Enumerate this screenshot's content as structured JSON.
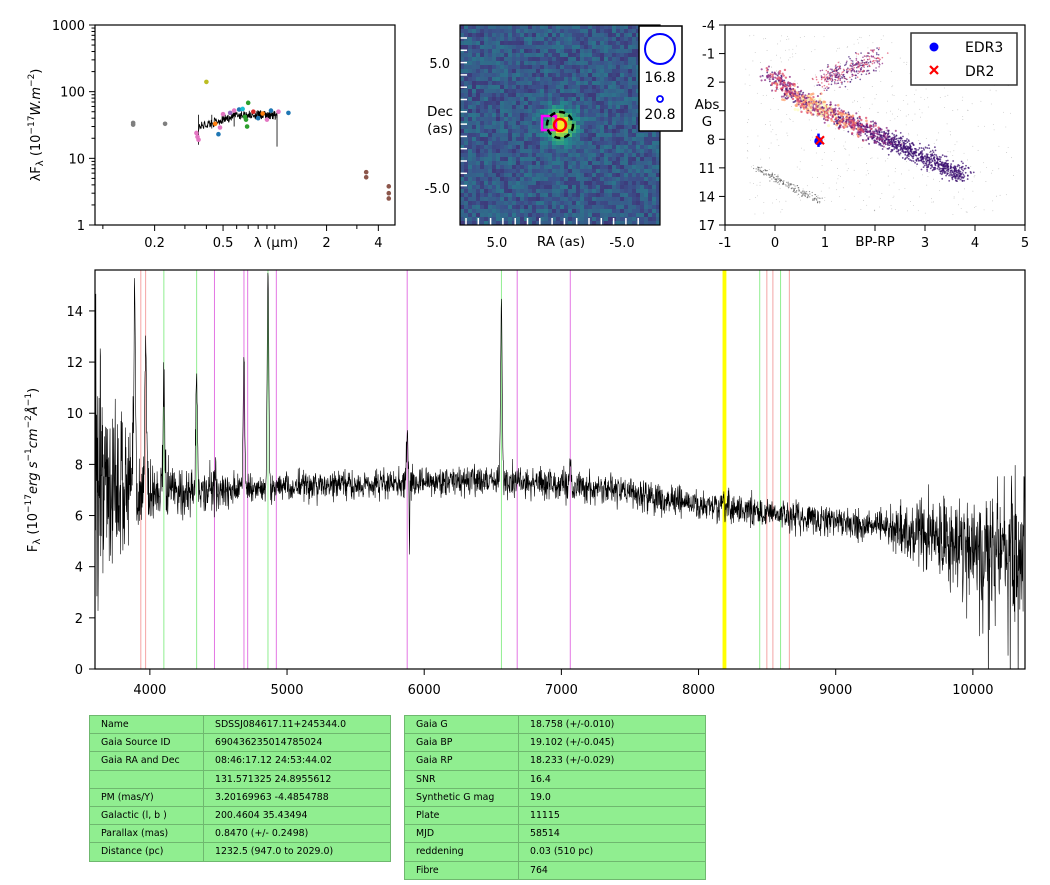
{
  "sed_panel": {
    "chart_data": {
      "type": "scatter",
      "xscale": "log",
      "yscale": "log",
      "xlim": [
        0.09,
        5.0
      ],
      "ylim": [
        1,
        1000
      ],
      "xlabel": "λ (μm)",
      "ylabel": "λF_λ (10^-17 W.m^-2)",
      "x_ticks": [
        "0.2",
        "0.5",
        "2",
        "4"
      ],
      "y_ticks": [
        "1",
        "10",
        "100",
        "1000"
      ],
      "points": [
        {
          "x": 0.15,
          "y": 34,
          "color": "#7f7f7f"
        },
        {
          "x": 0.15,
          "y": 32,
          "color": "#7f7f7f"
        },
        {
          "x": 0.23,
          "y": 33,
          "color": "#7f7f7f"
        },
        {
          "x": 0.35,
          "y": 24,
          "color": "#e377c2"
        },
        {
          "x": 0.355,
          "y": 21,
          "color": "#e377c2"
        },
        {
          "x": 0.36,
          "y": 19,
          "color": "#e377c2"
        },
        {
          "x": 0.4,
          "y": 140,
          "color": "#bcbd22"
        },
        {
          "x": 0.45,
          "y": 33,
          "color": "#ff7f0e"
        },
        {
          "x": 0.47,
          "y": 23,
          "color": "#1f77b4"
        },
        {
          "x": 0.48,
          "y": 29,
          "color": "#e377c2"
        },
        {
          "x": 0.5,
          "y": 46,
          "color": "#e377c2"
        },
        {
          "x": 0.55,
          "y": 48,
          "color": "#9467bd"
        },
        {
          "x": 0.58,
          "y": 52,
          "color": "#e377c2"
        },
        {
          "x": 0.62,
          "y": 54,
          "color": "#1f77b4"
        },
        {
          "x": 0.65,
          "y": 55,
          "color": "#17becf"
        },
        {
          "x": 0.67,
          "y": 42,
          "color": "#2ca02c"
        },
        {
          "x": 0.68,
          "y": 38,
          "color": "#2ca02c"
        },
        {
          "x": 0.69,
          "y": 30,
          "color": "#2ca02c"
        },
        {
          "x": 0.7,
          "y": 68,
          "color": "#2ca02c"
        },
        {
          "x": 0.75,
          "y": 50,
          "color": "#d62728"
        },
        {
          "x": 0.8,
          "y": 40,
          "color": "#1f77b4"
        },
        {
          "x": 0.85,
          "y": 47,
          "color": "#ff7f0e"
        },
        {
          "x": 0.9,
          "y": 38,
          "color": "#e377c2"
        },
        {
          "x": 0.95,
          "y": 52,
          "color": "#1f77b4"
        },
        {
          "x": 1.05,
          "y": 50,
          "color": "#e377c2"
        },
        {
          "x": 1.2,
          "y": 48,
          "color": "#1f77b4"
        },
        {
          "x": 3.4,
          "y": 6.2,
          "color": "#8c564b"
        },
        {
          "x": 3.4,
          "y": 5.2,
          "color": "#8c564b"
        },
        {
          "x": 4.6,
          "y": 3.8,
          "color": "#8c564b"
        },
        {
          "x": 4.6,
          "y": 3.0,
          "color": "#8c564b"
        },
        {
          "x": 4.6,
          "y": 2.5,
          "color": "#8c564b"
        }
      ]
    }
  },
  "image_panel": {
    "chart_data": {
      "type": "heatmap",
      "xlabel": "RA (as)",
      "ylabel_line1": "Dec",
      "ylabel_line2": "(as)",
      "x_ticks": [
        "5.0",
        "-5.0"
      ],
      "y_ticks": [
        "5.0",
        "-5.0"
      ],
      "legend": [
        {
          "label": "16.8",
          "marker": "large circle",
          "color": "#0000ff"
        },
        {
          "label": "20.8",
          "marker": "small circle",
          "color": "#0000ff"
        }
      ]
    }
  },
  "cmd_panel": {
    "chart_data": {
      "type": "scatter",
      "xlabel": "BP-RP",
      "ylabel_line1": "Abs",
      "ylabel_line2": "G",
      "xlim": [
        -1,
        5
      ],
      "ylim": [
        17,
        -4
      ],
      "x_ticks": [
        "-1",
        "0",
        "1",
        "3",
        "4",
        "5"
      ],
      "y_ticks": [
        "-4",
        "-1",
        "2",
        "8",
        "11",
        "14",
        "17"
      ],
      "legend": [
        {
          "label": "EDR3",
          "marker": "circle",
          "color": "#0000ff"
        },
        {
          "label": "DR2",
          "marker": "x",
          "color": "#ff0000"
        }
      ],
      "series": [
        {
          "name": "EDR3",
          "x": [
            0.87
          ],
          "y": [
            8.2
          ],
          "color": "#0000ff"
        },
        {
          "name": "DR2",
          "x": [
            0.9
          ],
          "y": [
            8.1
          ],
          "color": "#ff0000"
        }
      ]
    }
  },
  "spectrum_panel": {
    "chart_data": {
      "type": "line",
      "xlim": [
        3600,
        10380
      ],
      "ylim": [
        0,
        15.6
      ],
      "ylabel": "F_λ (10^-17 erg s^-1 cm^-2 Å^-1)",
      "x_ticks": [
        "4000",
        "5000",
        "6000",
        "7000",
        "8000",
        "9000",
        "10000"
      ],
      "y_ticks": [
        "0",
        "2",
        "4",
        "6",
        "8",
        "10",
        "12",
        "14"
      ],
      "continuum_knots": [
        [
          3600,
          7.5
        ],
        [
          3900,
          7.0
        ],
        [
          4200,
          6.9
        ],
        [
          4500,
          7.0
        ],
        [
          5000,
          7.1
        ],
        [
          5500,
          7.2
        ],
        [
          6000,
          7.3
        ],
        [
          6500,
          7.4
        ],
        [
          7000,
          7.2
        ],
        [
          7500,
          6.9
        ],
        [
          8000,
          6.4
        ],
        [
          8500,
          6.1
        ],
        [
          9000,
          5.8
        ],
        [
          9500,
          5.4
        ],
        [
          10000,
          4.8
        ],
        [
          10380,
          4.6
        ]
      ],
      "emission_lines": [
        [
          3889,
          14.5
        ],
        [
          3970,
          13.0
        ],
        [
          4102,
          11.0
        ],
        [
          4341,
          11.5
        ],
        [
          4686,
          12.4
        ],
        [
          4861,
          15.6
        ],
        [
          5876,
          9.3
        ],
        [
          6563,
          14.4
        ],
        [
          7065,
          8.3
        ]
      ],
      "vertical_lines": [
        {
          "x": 3934,
          "color": "#f4a5a5"
        },
        {
          "x": 3969,
          "color": "#f4a5a5"
        },
        {
          "x": 4102,
          "color": "#90ee90"
        },
        {
          "x": 4341,
          "color": "#90ee90"
        },
        {
          "x": 4471,
          "color": "#e377e3"
        },
        {
          "x": 4686,
          "color": "#e377e3"
        },
        {
          "x": 4713,
          "color": "#e377e3"
        },
        {
          "x": 4861,
          "color": "#90ee90"
        },
        {
          "x": 4922,
          "color": "#e377e3"
        },
        {
          "x": 5876,
          "color": "#e377e3"
        },
        {
          "x": 6563,
          "color": "#90ee90"
        },
        {
          "x": 6678,
          "color": "#e377e3"
        },
        {
          "x": 7065,
          "color": "#e377e3"
        },
        {
          "x": 8183,
          "color": "#ffff00"
        },
        {
          "x": 8195,
          "color": "#ffff00"
        },
        {
          "x": 8446,
          "color": "#90ee90"
        },
        {
          "x": 8498,
          "color": "#f4a5a5"
        },
        {
          "x": 8542,
          "color": "#f4a5a5"
        },
        {
          "x": 8598,
          "color": "#90ee90"
        },
        {
          "x": 8662,
          "color": "#f4a5a5"
        }
      ]
    }
  },
  "table_left": {
    "rows": [
      {
        "key": "Name",
        "value": "SDSSJ084617.11+245344.0"
      },
      {
        "key": "Gaia Source ID",
        "value": "690436235014785024"
      },
      {
        "key": "Gaia RA and Dec",
        "value": "08:46:17.12    24:53:44.02"
      },
      {
        "key": "",
        "value": "131.571325    24.8955612"
      },
      {
        "key": "PM (mas/Y)",
        "value": "3.20169963    -4.4854788"
      },
      {
        "key": "Galactic (l, b )",
        "value": "200.4604    35.43494"
      },
      {
        "key": "Parallax (mas)",
        "value": "0.8470 (+/- 0.2498)"
      },
      {
        "key": "Distance (pc)",
        "value": "1232.5 (947.0 to 2029.0)"
      }
    ]
  },
  "table_right": {
    "rows": [
      {
        "key": "Gaia G",
        "value": "18.758 (+/-0.010)"
      },
      {
        "key": "Gaia BP",
        "value": "19.102 (+/-0.045)"
      },
      {
        "key": "Gaia RP",
        "value": "18.233 (+/-0.029)"
      },
      {
        "key": "SNR",
        "value": "16.4"
      },
      {
        "key": "Synthetic G mag",
        "value": "19.0"
      },
      {
        "key": "Plate",
        "value": "11115"
      },
      {
        "key": "MJD",
        "value": "58514"
      },
      {
        "key": "reddening",
        "value": "0.03 (510 pc)"
      },
      {
        "key": "Fibre",
        "value": "764"
      }
    ]
  }
}
